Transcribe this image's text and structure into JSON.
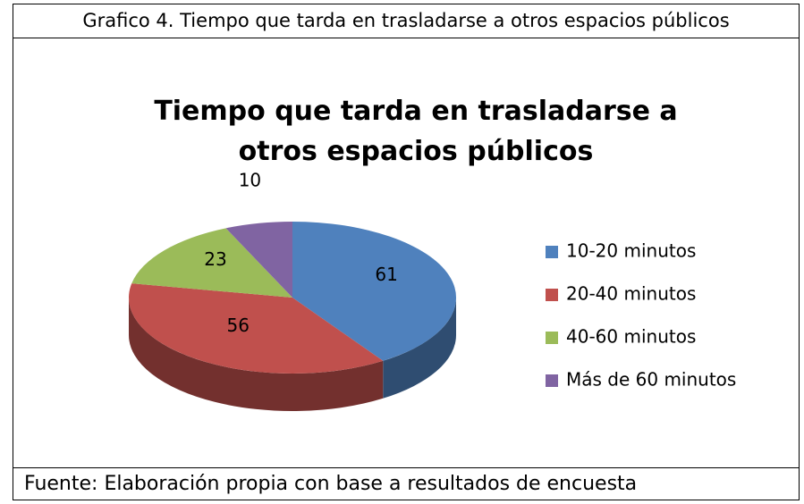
{
  "header": "Grafico 4. Tiempo que tarda en trasladarse a otros espacios públicos",
  "chart_data": {
    "type": "pie3d",
    "title": "Tiempo que tarda en trasladarse a otros espacios públicos",
    "categories": [
      "10-20 minutos",
      "20-40 minutos",
      "40-60 minutos",
      "Más de 60 minutos"
    ],
    "values": [
      61,
      56,
      23,
      10
    ],
    "colors": [
      "#4f81bd",
      "#c0504d",
      "#9bbb59",
      "#8064a2"
    ],
    "legend": "right"
  },
  "footer": "Fuente: Elaboración propia con base a resultados de encuesta"
}
